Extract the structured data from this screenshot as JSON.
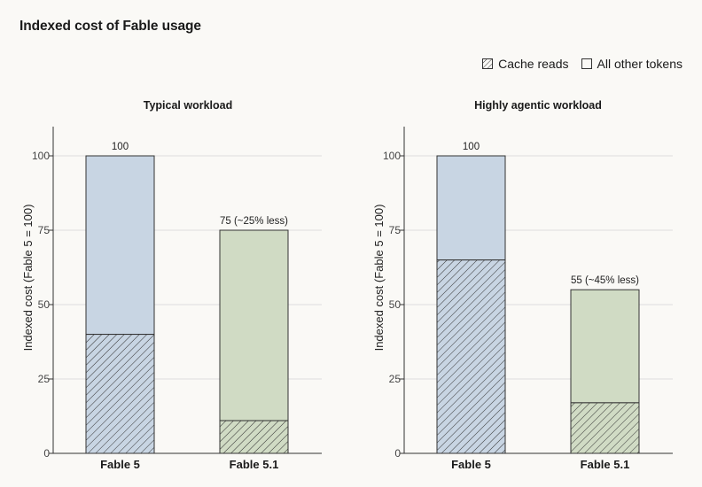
{
  "title": "Indexed cost of Fable usage",
  "legend": {
    "cache_reads": "Cache reads",
    "other_tokens": "All other tokens"
  },
  "colors": {
    "background": "#faf9f6",
    "fable5_fill": "#c8d5e3",
    "fable51_fill": "#d0dbc4",
    "outline": "#333333",
    "hatch": "#333333",
    "grid": "#dddddd"
  },
  "chart_data": [
    {
      "type": "bar",
      "stacked": true,
      "title": "Typical workload",
      "ylabel": "Indexed cost (Fable 5 = 100)",
      "ylim": [
        0,
        110
      ],
      "yticks": [
        0,
        25,
        50,
        75,
        100
      ],
      "grid": true,
      "categories": [
        "Fable 5",
        "Fable 5.1"
      ],
      "series": [
        {
          "name": "Cache reads",
          "values": [
            40,
            11
          ]
        },
        {
          "name": "All other tokens",
          "values": [
            60,
            64
          ]
        }
      ],
      "totals": [
        100,
        75
      ],
      "labels": [
        "100",
        "75 (~25% less)"
      ]
    },
    {
      "type": "bar",
      "stacked": true,
      "title": "Highly agentic workload",
      "ylabel": "Indexed cost (Fable 5 = 100)",
      "ylim": [
        0,
        110
      ],
      "yticks": [
        0,
        25,
        50,
        75,
        100
      ],
      "grid": true,
      "categories": [
        "Fable 5",
        "Fable 5.1"
      ],
      "series": [
        {
          "name": "Cache reads",
          "values": [
            65,
            17
          ]
        },
        {
          "name": "All other tokens",
          "values": [
            35,
            38
          ]
        }
      ],
      "totals": [
        100,
        55
      ],
      "labels": [
        "100",
        "55 (~45% less)"
      ]
    }
  ]
}
